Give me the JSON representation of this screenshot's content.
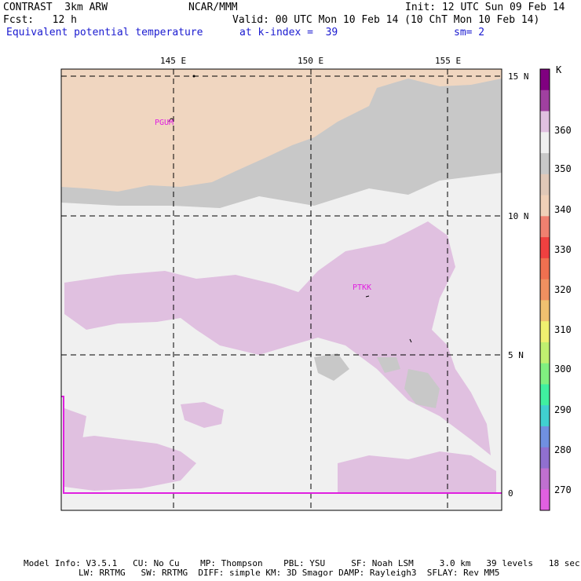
{
  "header": {
    "model": "CONTRAST  3km ARW",
    "org": "NCAR/MMM",
    "init": "Init: 12 UTC Sun 09 Feb 14",
    "fcst": "Fcst:   12 h",
    "valid": "Valid: 00 UTC Mon 10 Feb 14 (10 ChT Mon 10 Feb 14)",
    "field": "Equivalent potential temperature",
    "level": "at k-index =  39",
    "smooth": "sm= 2"
  },
  "map": {
    "lon_labels": [
      "145 E",
      "150 E",
      "155 E"
    ],
    "lat_labels": [
      "15 N",
      "10 N",
      "5 N",
      "0"
    ],
    "stations": [
      "PGUM",
      "PTKK"
    ]
  },
  "colorbar": {
    "unit": "K",
    "labels": [
      "360",
      "350",
      "340",
      "330",
      "320",
      "310",
      "300",
      "290",
      "280",
      "270"
    ],
    "colors": [
      "#800080",
      "#a040a0",
      "#e0c0e0",
      "#f0f0f0",
      "#c8c8c8",
      "#e0c8b8",
      "#f0d0b8",
      "#f08070",
      "#f04040",
      "#f07050",
      "#f09060",
      "#f0c070",
      "#f0f070",
      "#c0f070",
      "#80f080",
      "#40f0a0",
      "#40d0d0",
      "#7090e0",
      "#9070d0",
      "#c070d0",
      "#e060e0"
    ]
  },
  "footer": {
    "line1": "Model Info: V3.5.1   CU: No Cu    MP: Thompson    PBL: YSU     SF: Noah LSM     3.0 km   39 levels   18 sec",
    "line2": "LW: RRTMG   SW: RRTMG  DIFF: simple KM: 3D Smagor DAMP: Rayleigh3  SFLAY: Rev MM5"
  }
}
